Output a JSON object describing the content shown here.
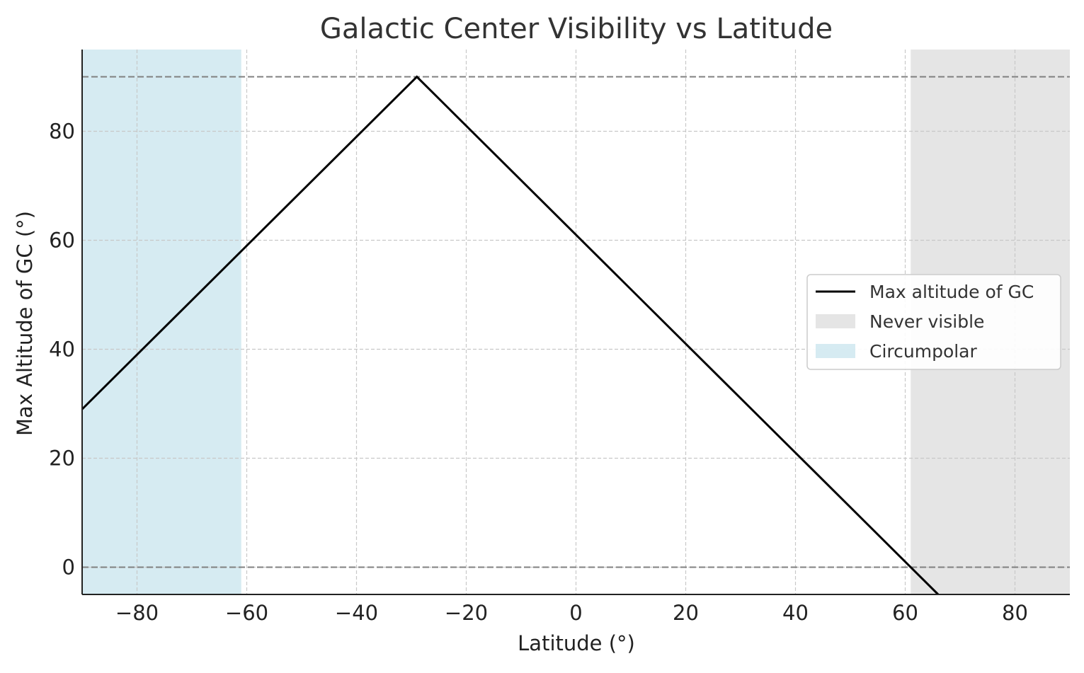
{
  "chart_data": {
    "type": "line",
    "title": "Galactic Center Visibility vs Latitude",
    "xlabel": "Latitude (°)",
    "ylabel": "Max Altitude of GC (°)",
    "xlim": [
      -90,
      90
    ],
    "ylim": [
      -5,
      95
    ],
    "x_ticks": [
      -80,
      -60,
      -40,
      -20,
      0,
      20,
      40,
      60,
      80
    ],
    "x_tick_labels": [
      "−80",
      "−60",
      "−40",
      "−20",
      "0",
      "20",
      "40",
      "60",
      "80"
    ],
    "y_ticks": [
      0,
      20,
      40,
      60,
      80
    ],
    "y_tick_labels": [
      "0",
      "20",
      "40",
      "60",
      "80"
    ],
    "grid": true,
    "legend_position": "center-right",
    "series": [
      {
        "name": "Max altitude of GC",
        "color": "#000000",
        "x": [
          -90,
          -29,
          66
        ],
        "y": [
          29,
          90,
          -5
        ]
      }
    ],
    "shaded_regions": [
      {
        "name": "Never visible",
        "x_range": [
          61,
          90
        ],
        "color": "#e5e5e5"
      },
      {
        "name": "Circumpolar",
        "x_range": [
          -90,
          -61
        ],
        "color": "#add8e6"
      }
    ],
    "reference_lines": [
      {
        "y": 90,
        "style": "dashed",
        "color": "#808080"
      },
      {
        "y": 0,
        "style": "dashed",
        "color": "#808080"
      }
    ],
    "legend": [
      {
        "label": "Max altitude of GC",
        "kind": "line",
        "color": "#000000"
      },
      {
        "label": "Never visible",
        "kind": "patch",
        "color": "#e5e5e5"
      },
      {
        "label": "Circumpolar",
        "kind": "patch",
        "color": "#add8e6"
      }
    ]
  }
}
